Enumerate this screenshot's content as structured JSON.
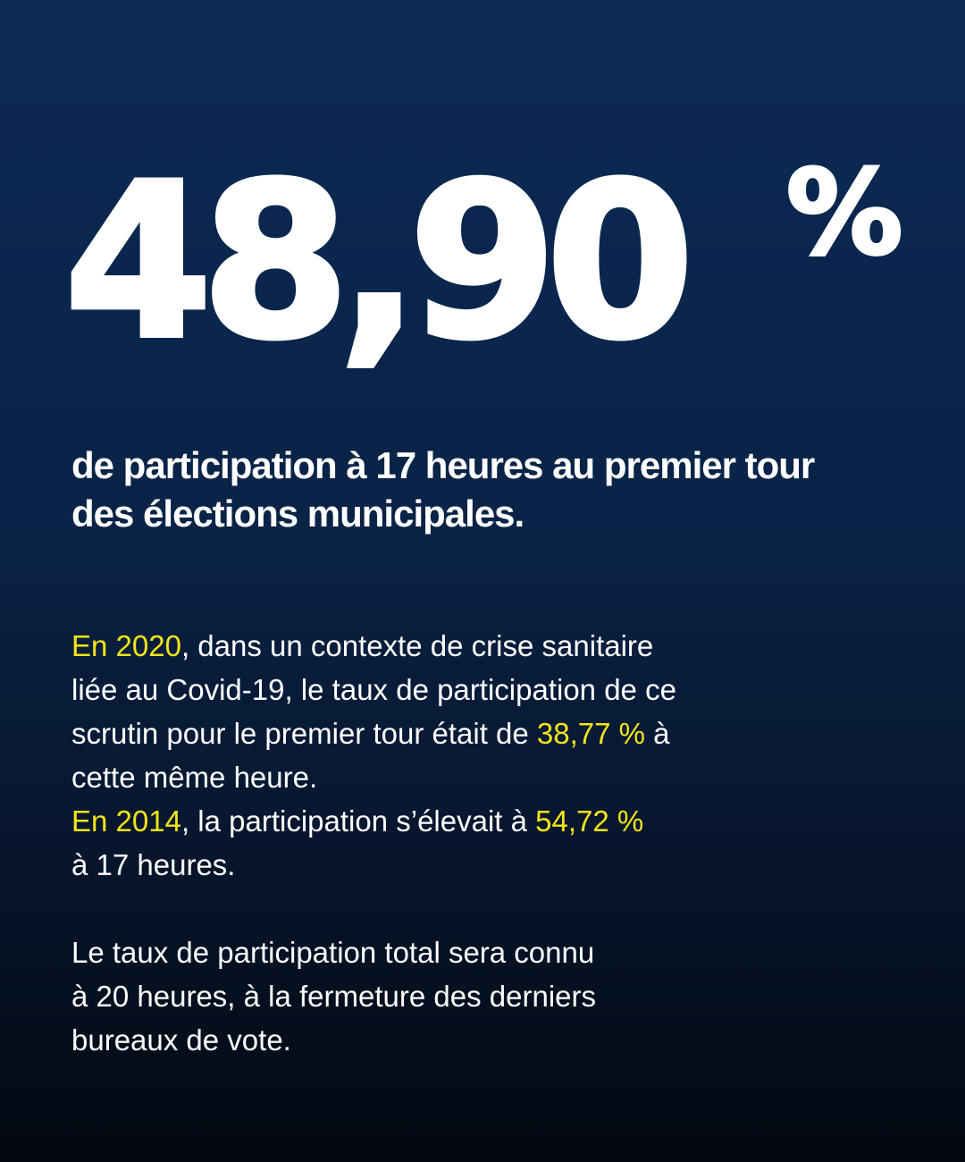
{
  "stat": {
    "value": "48,90",
    "unit": "%"
  },
  "headline": {
    "line1": "de participation à 17 heures au premier tour",
    "line2": "des élections municipales."
  },
  "paragraph1": {
    "year": "En 2020",
    "line1_rest": ", dans un contexte de crise sanitaire",
    "line2": "liée au Covid-19, le taux de participation de ce",
    "line3_before": "scrutin pour le premier tour était de ",
    "value": "38,77 %",
    "line3_after": " à",
    "line4": "cette même heure."
  },
  "paragraph2": {
    "year": "En 2014",
    "line1_rest": ", la participation s’élevait à ",
    "value": "54,72 %",
    "line2": "à 17 heures."
  },
  "paragraph3": {
    "line1": "Le taux de participation total sera connu",
    "line2": "à 20 heures, à la fermeture des derniers",
    "line3": "bureaux de vote."
  },
  "colors": {
    "background_top": "#0c2a55",
    "background_bottom": "#030811",
    "highlight": "#f2e51a",
    "text": "#ffffff"
  }
}
